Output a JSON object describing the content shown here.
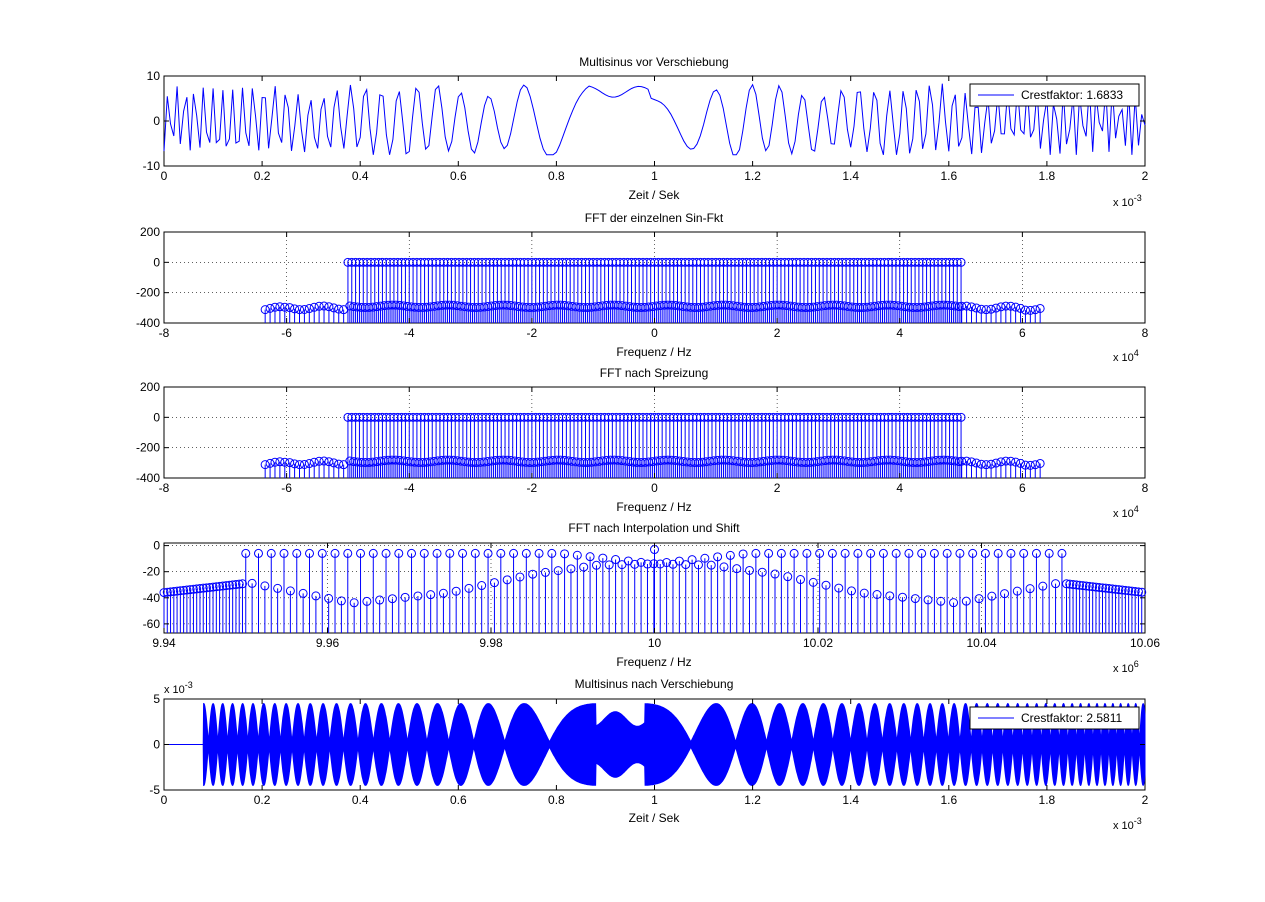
{
  "figure": {
    "background": "#ffffff",
    "line_color": "#0000ff"
  },
  "chart_data": [
    {
      "id": "p1",
      "type": "line",
      "title": "Multisinus vor Verschiebung",
      "xlabel": "Zeit / Sek",
      "ylabel": "",
      "xlim": [
        0,
        2
      ],
      "ylim": [
        -10,
        10
      ],
      "xticks": [
        0,
        0.2,
        0.4,
        0.6,
        0.8,
        1,
        1.2,
        1.4,
        1.6,
        1.8,
        2
      ],
      "xtick_labels": [
        "0",
        "0.2",
        "0.4",
        "0.6",
        "0.8",
        "1",
        "1.2",
        "1.4",
        "1.6",
        "1.8",
        "2"
      ],
      "yticks": [
        -10,
        0,
        10
      ],
      "ytick_labels": [
        "-10",
        "0",
        "10"
      ],
      "x_multiplier": "x 10",
      "x_multiplier_exp": "-3",
      "grid": false,
      "legend": {
        "entries": [
          "Crestfaktor: 1.6833"
        ],
        "placement": "top-right"
      },
      "series": [
        {
          "name": "Crestfaktor: 1.6833",
          "color": "#0000ff",
          "model": "symmetric chirp multisine, sampled 300 points over [0, 2]",
          "amplitude_range": [
            -7.5,
            8.5
          ],
          "crest_factor": 1.6833
        }
      ]
    },
    {
      "id": "p2",
      "type": "stem",
      "title": "FFT der einzelnen Sin-Fkt",
      "xlabel": "Frequenz / Hz",
      "ylabel": "",
      "xlim": [
        -8,
        8
      ],
      "ylim": [
        -400,
        200
      ],
      "xticks": [
        -8,
        -6,
        -4,
        -2,
        0,
        2,
        4,
        6,
        8
      ],
      "xtick_labels": [
        "-8",
        "-6",
        "-4",
        "-2",
        "0",
        "2",
        "4",
        "6",
        "8"
      ],
      "yticks": [
        -400,
        -200,
        0,
        200
      ],
      "ytick_labels": [
        "-400",
        "-200",
        "0",
        "200"
      ],
      "x_multiplier": "x 10",
      "x_multiplier_exp": "4",
      "grid": true,
      "series": [
        {
          "color": "#0000ff",
          "stem_base": -400,
          "in_band_range": [
            -5,
            5
          ],
          "in_band_peak_value": 0,
          "in_band_floor_value": -290,
          "out_of_band_range": [
            -6.35,
            6.35
          ],
          "out_of_band_value": -300
        }
      ]
    },
    {
      "id": "p3",
      "type": "stem",
      "title": "FFT nach Spreizung",
      "xlabel": "Frequenz / Hz",
      "ylabel": "",
      "xlim": [
        -8,
        8
      ],
      "ylim": [
        -400,
        200
      ],
      "xticks": [
        -8,
        -6,
        -4,
        -2,
        0,
        2,
        4,
        6,
        8
      ],
      "xtick_labels": [
        "-8",
        "-6",
        "-4",
        "-2",
        "0",
        "2",
        "4",
        "6",
        "8"
      ],
      "yticks": [
        -400,
        -200,
        0,
        200
      ],
      "ytick_labels": [
        "-400",
        "-200",
        "0",
        "200"
      ],
      "x_multiplier": "x 10",
      "x_multiplier_exp": "4",
      "grid": true,
      "series": [
        {
          "color": "#0000ff",
          "stem_base": -400,
          "in_band_range": [
            -5,
            5
          ],
          "in_band_peak_value": 0,
          "in_band_floor_value": -290,
          "out_of_band_range": [
            -6.35,
            6.35
          ],
          "out_of_band_value": -300
        }
      ]
    },
    {
      "id": "p4",
      "type": "stem",
      "title": "FFT nach Interpolation und Shift",
      "xlabel": "Frequenz / Hz",
      "ylabel": "",
      "xlim": [
        9.94,
        10.06
      ],
      "ylim": [
        -67,
        2
      ],
      "xticks": [
        9.94,
        9.96,
        9.98,
        10,
        10.02,
        10.04,
        10.06
      ],
      "xtick_labels": [
        "9.94",
        "9.96",
        "9.98",
        "10",
        "10.02",
        "10.04",
        "10.06"
      ],
      "yticks": [
        -60,
        -40,
        -20,
        0
      ],
      "ytick_labels": [
        "-60",
        "-40",
        "-20",
        "0"
      ],
      "x_multiplier": "x 10",
      "x_multiplier_exp": "6",
      "grid": true,
      "series": [
        {
          "color": "#0000ff",
          "stem_base": -67,
          "in_band_range": [
            9.95,
            10.05
          ],
          "in_band_peak_value": -6,
          "center_peak": {
            "x": 10,
            "y": -3
          },
          "floor_points": [
            [
              9.95,
              -28
            ],
            [
              9.963,
              -44
            ],
            [
              9.975,
              -36
            ],
            [
              9.985,
              -22
            ],
            [
              9.993,
              -15
            ],
            [
              10,
              -14
            ],
            [
              10.007,
              -15
            ],
            [
              10.015,
              -22
            ],
            [
              10.025,
              -36
            ],
            [
              10.037,
              -44
            ],
            [
              10.05,
              -28
            ]
          ],
          "out_of_band_points": [
            [
              9.94,
              -36
            ],
            [
              9.95,
              -29
            ],
            [
              10.05,
              -29
            ],
            [
              10.06,
              -36
            ]
          ]
        }
      ]
    },
    {
      "id": "p5",
      "type": "line",
      "title": "Multisinus nach Verschiebung",
      "xlabel": "Zeit / Sek",
      "ylabel": "",
      "xlim": [
        0,
        2
      ],
      "ylim": [
        -5,
        5
      ],
      "xticks": [
        0,
        0.2,
        0.4,
        0.6,
        0.8,
        1,
        1.2,
        1.4,
        1.6,
        1.8,
        2
      ],
      "xtick_labels": [
        "0",
        "0.2",
        "0.4",
        "0.6",
        "0.8",
        "1",
        "1.2",
        "1.4",
        "1.6",
        "1.8",
        "2"
      ],
      "yticks": [
        -5,
        0,
        5
      ],
      "ytick_labels": [
        "-5",
        "0",
        "5"
      ],
      "x_multiplier": "x 10",
      "x_multiplier_exp": "-3",
      "y_multiplier": "x 10",
      "y_multiplier_exp": "-3",
      "grid": false,
      "legend": {
        "entries": [
          "Crestfaktor: 2.5811"
        ],
        "placement": "top-right"
      },
      "series": [
        {
          "name": "Crestfaktor: 2.5811",
          "color": "#0000ff",
          "model": "amplitude-modulated carrier, filled envelope, zero before 0.08",
          "onset": 0.08,
          "amplitude_range": [
            -4.6,
            4.6
          ],
          "crest_factor": 2.5811
        }
      ]
    }
  ]
}
